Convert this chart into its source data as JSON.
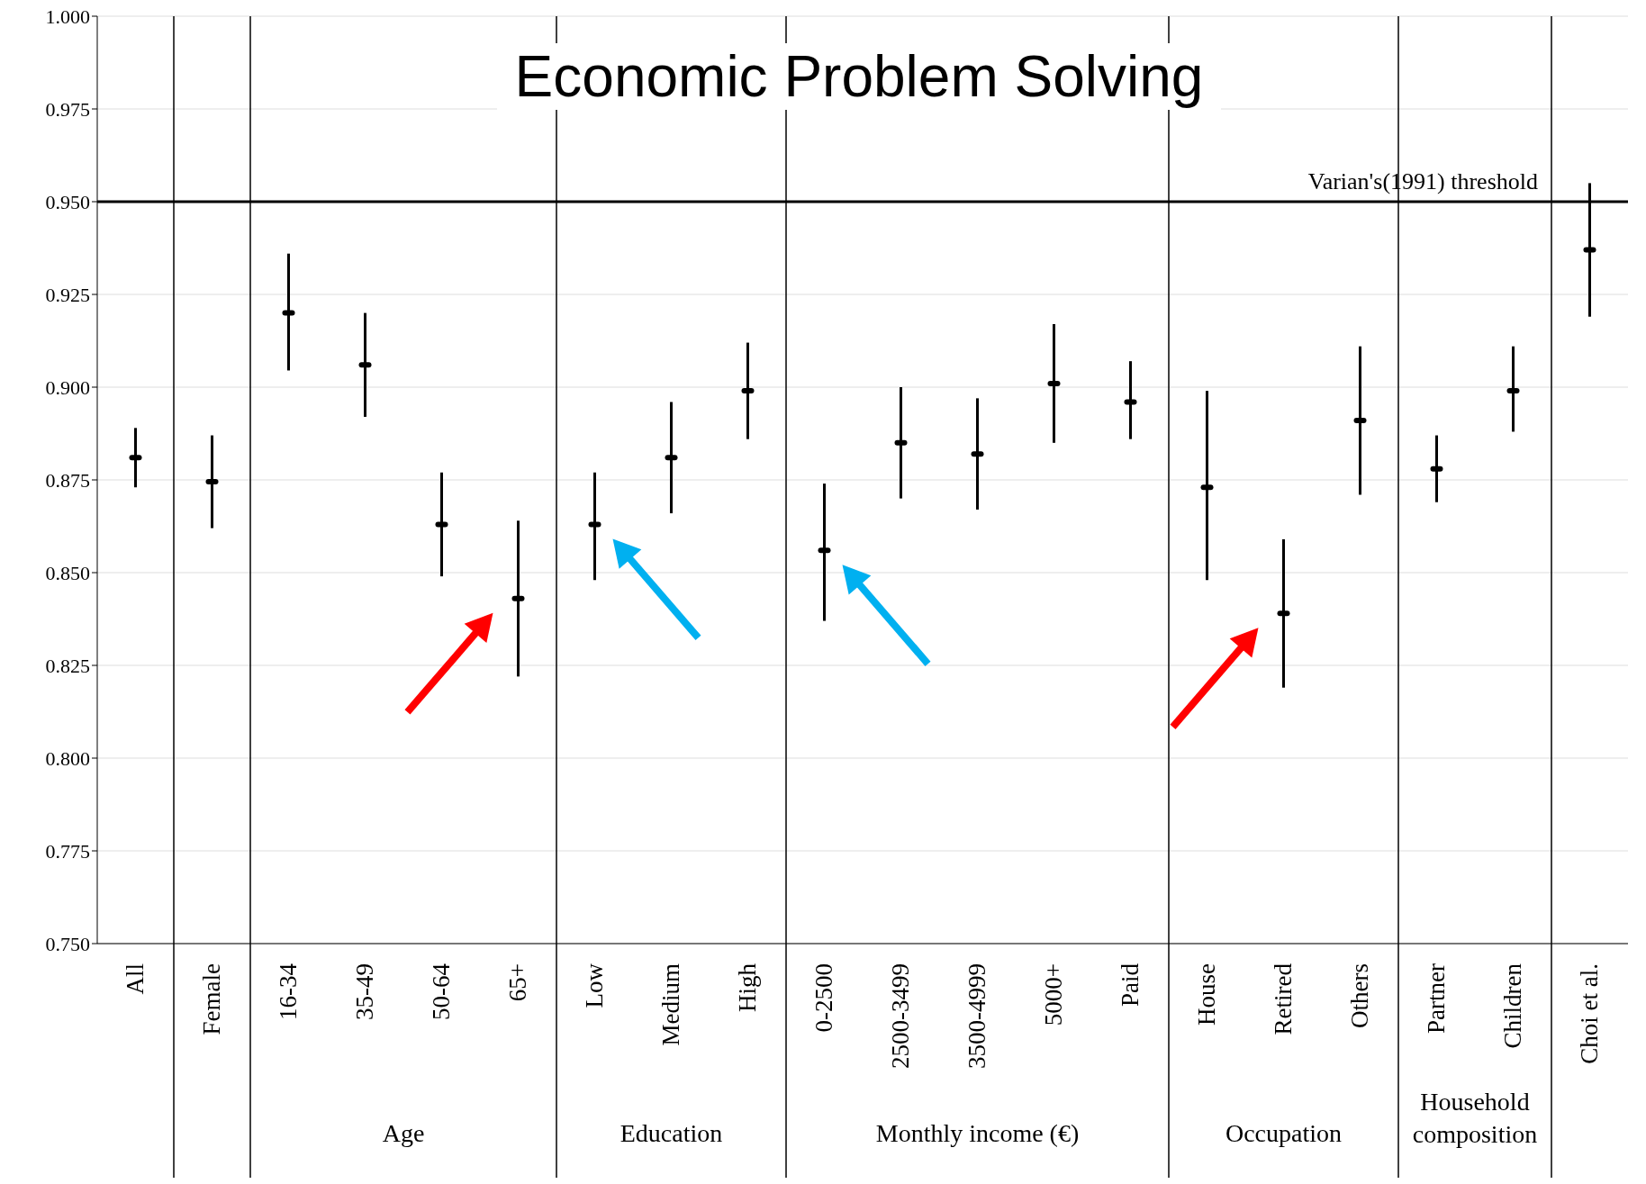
{
  "chart_data": {
    "type": "scatter",
    "title": "Economic Problem Solving",
    "categories": [
      "All",
      "Female",
      "16-34",
      "35-49",
      "50-64",
      "65+",
      "Low",
      "Medium",
      "High",
      "0-2500",
      "2500-3499",
      "3500-4999",
      "5000+",
      "Paid",
      "House",
      "Retired",
      "Others",
      "Partner",
      "Children",
      "Choi et al."
    ],
    "series": [
      {
        "color": "#000000",
        "values": [
          0.881,
          0.8745,
          0.92,
          0.906,
          0.863,
          0.843,
          0.863,
          0.881,
          0.899,
          0.856,
          0.885,
          0.882,
          0.901,
          0.896,
          0.873,
          0.839,
          0.891,
          0.878,
          0.899,
          0.937
        ],
        "errors": [
          [
            0.873,
            0.889
          ],
          [
            0.862,
            0.887
          ],
          [
            0.9045,
            0.936
          ],
          [
            0.892,
            0.92
          ],
          [
            0.849,
            0.877
          ],
          [
            0.822,
            0.864
          ],
          [
            0.848,
            0.877
          ],
          [
            0.866,
            0.896
          ],
          [
            0.886,
            0.912
          ],
          [
            0.837,
            0.874
          ],
          [
            0.87,
            0.9
          ],
          [
            0.867,
            0.897
          ],
          [
            0.885,
            0.917
          ],
          [
            0.886,
            0.907
          ],
          [
            0.848,
            0.899
          ],
          [
            0.819,
            0.859
          ],
          [
            0.871,
            0.911
          ],
          [
            0.869,
            0.887
          ],
          [
            0.888,
            0.911
          ],
          [
            0.919,
            0.955
          ]
        ]
      }
    ],
    "ylim": [
      0.75,
      1.0
    ],
    "yticks": [
      {
        "value": 0.75,
        "label": "0.750"
      },
      {
        "value": 0.775,
        "label": "0.775"
      },
      {
        "value": 0.8,
        "label": "0.800"
      },
      {
        "value": 0.825,
        "label": "0.825"
      },
      {
        "value": 0.85,
        "label": "0.850"
      },
      {
        "value": 0.875,
        "label": "0.875"
      },
      {
        "value": 0.9,
        "label": "0.900"
      },
      {
        "value": 0.925,
        "label": "0.925"
      },
      {
        "value": 0.95,
        "label": "0.950"
      },
      {
        "value": 0.975,
        "label": "0.975"
      },
      {
        "value": 1.0,
        "label": "1.000"
      }
    ],
    "grid": "y",
    "ref_lines": [
      {
        "axis": "y",
        "value": 0.95,
        "label": "Varian's(1991) threshold",
        "color": "#000000"
      }
    ],
    "annotations": [
      "Age",
      "Education",
      "Monthly income (€)",
      "Occupation",
      "Household composition"
    ]
  }
}
